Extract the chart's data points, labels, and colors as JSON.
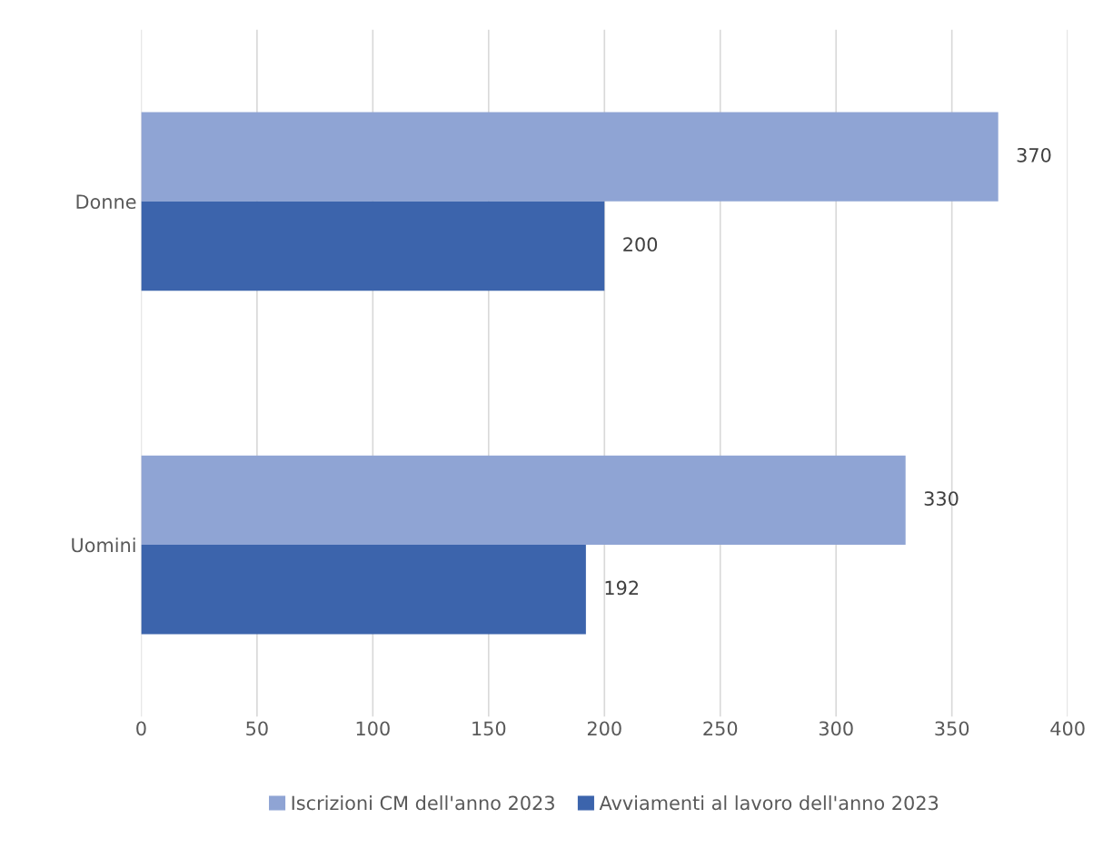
{
  "chart_data": {
    "type": "bar",
    "orientation": "horizontal",
    "categories": [
      "Donne",
      "Uomini"
    ],
    "series": [
      {
        "name": "Iscrizioni CM dell'anno 2023",
        "color": "#8fa4d4",
        "values": [
          370,
          330
        ]
      },
      {
        "name": "Avviamenti al lavoro dell'anno 2023",
        "color": "#3c64ac",
        "values": [
          200,
          192
        ]
      }
    ],
    "xlim": [
      0,
      400
    ],
    "xticks": [
      0,
      50,
      100,
      150,
      200,
      250,
      300,
      350,
      400
    ],
    "grid": "x",
    "legend": "bottom",
    "data_labels": true
  }
}
